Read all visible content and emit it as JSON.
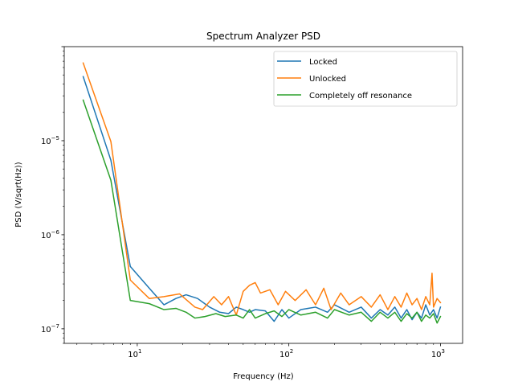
{
  "chart_data": {
    "type": "line",
    "title": "Spectrum Analyzer PSD",
    "xlabel": "Frequency (Hz)",
    "ylabel": "PSD (V/sqrt(Hz))",
    "x_scale": "log",
    "y_scale": "log",
    "xlim": [
      3.3,
      1400
    ],
    "ylim": [
      7e-08,
      0.0001
    ],
    "x_tick_labels": [
      {
        "value": 10,
        "base": "10",
        "exp": "1"
      },
      {
        "value": 100,
        "base": "10",
        "exp": "2"
      },
      {
        "value": 1000,
        "base": "10",
        "exp": "3"
      }
    ],
    "y_tick_labels": [
      {
        "value": 1e-07,
        "base": "10",
        "exp": "−7"
      },
      {
        "value": 1e-06,
        "base": "10",
        "exp": "−6"
      },
      {
        "value": 1e-05,
        "base": "10",
        "exp": "−5"
      }
    ],
    "grid": false,
    "legend_position": "top-right",
    "series": [
      {
        "name": "Locked",
        "color": "#1f77b4",
        "points": [
          [
            4.4,
            4.8e-05
          ],
          [
            6.7,
            6.2e-06
          ],
          [
            9.0,
            4.6e-07
          ],
          [
            12.0,
            2.7e-07
          ],
          [
            15.0,
            1.8e-07
          ],
          [
            18.0,
            2.1e-07
          ],
          [
            21.0,
            2.3e-07
          ],
          [
            25.0,
            2.1e-07
          ],
          [
            30.0,
            1.7e-07
          ],
          [
            35.0,
            1.5e-07
          ],
          [
            40.0,
            1.45e-07
          ],
          [
            45.0,
            1.7e-07
          ],
          [
            50.0,
            1.6e-07
          ],
          [
            55.0,
            1.5e-07
          ],
          [
            60.0,
            1.6e-07
          ],
          [
            70.0,
            1.55e-07
          ],
          [
            80.0,
            1.2e-07
          ],
          [
            90.0,
            1.6e-07
          ],
          [
            100,
            1.3e-07
          ],
          [
            120,
            1.6e-07
          ],
          [
            150,
            1.7e-07
          ],
          [
            180,
            1.5e-07
          ],
          [
            200,
            1.8e-07
          ],
          [
            250,
            1.5e-07
          ],
          [
            300,
            1.7e-07
          ],
          [
            350,
            1.3e-07
          ],
          [
            400,
            1.6e-07
          ],
          [
            450,
            1.4e-07
          ],
          [
            500,
            1.7e-07
          ],
          [
            550,
            1.3e-07
          ],
          [
            600,
            1.6e-07
          ],
          [
            650,
            1.25e-07
          ],
          [
            700,
            1.5e-07
          ],
          [
            750,
            1.3e-07
          ],
          [
            800,
            1.8e-07
          ],
          [
            850,
            1.4e-07
          ],
          [
            900,
            1.6e-07
          ],
          [
            950,
            1.3e-07
          ],
          [
            1000,
            1.7e-07
          ]
        ]
      },
      {
        "name": "Unlocked",
        "color": "#ff7f0e",
        "points": [
          [
            4.4,
            6.7e-05
          ],
          [
            6.7,
            9.8e-06
          ],
          [
            9.0,
            3.3e-07
          ],
          [
            12.0,
            2.1e-07
          ],
          [
            15.0,
            2.2e-07
          ],
          [
            19.0,
            2.35e-07
          ],
          [
            24.0,
            1.7e-07
          ],
          [
            27.0,
            1.6e-07
          ],
          [
            32.0,
            2.2e-07
          ],
          [
            36.0,
            1.8e-07
          ],
          [
            40.0,
            2.2e-07
          ],
          [
            45.0,
            1.4e-07
          ],
          [
            50.0,
            2.5e-07
          ],
          [
            55.0,
            2.9e-07
          ],
          [
            60.0,
            3.1e-07
          ],
          [
            65.0,
            2.4e-07
          ],
          [
            75.0,
            2.6e-07
          ],
          [
            85.0,
            1.8e-07
          ],
          [
            95.0,
            2.5e-07
          ],
          [
            110,
            2e-07
          ],
          [
            130,
            2.6e-07
          ],
          [
            150,
            1.8e-07
          ],
          [
            170,
            2.7e-07
          ],
          [
            190,
            1.6e-07
          ],
          [
            220,
            2.4e-07
          ],
          [
            250,
            1.8e-07
          ],
          [
            300,
            2.2e-07
          ],
          [
            350,
            1.7e-07
          ],
          [
            400,
            2.3e-07
          ],
          [
            450,
            1.6e-07
          ],
          [
            500,
            2.2e-07
          ],
          [
            550,
            1.7e-07
          ],
          [
            600,
            2.4e-07
          ],
          [
            650,
            1.8e-07
          ],
          [
            700,
            2.1e-07
          ],
          [
            750,
            1.6e-07
          ],
          [
            800,
            2.2e-07
          ],
          [
            850,
            1.8e-07
          ],
          [
            880,
            3.9e-07
          ],
          [
            900,
            1.7e-07
          ],
          [
            950,
            2.1e-07
          ],
          [
            1000,
            1.9e-07
          ]
        ]
      },
      {
        "name": "Completely off resonance",
        "color": "#2ca02c",
        "points": [
          [
            4.4,
            2.7e-05
          ],
          [
            6.7,
            3.8e-06
          ],
          [
            9.0,
            2e-07
          ],
          [
            12.0,
            1.85e-07
          ],
          [
            15.0,
            1.6e-07
          ],
          [
            18.0,
            1.65e-07
          ],
          [
            21.0,
            1.5e-07
          ],
          [
            24.0,
            1.3e-07
          ],
          [
            28.0,
            1.35e-07
          ],
          [
            33.0,
            1.45e-07
          ],
          [
            38.0,
            1.35e-07
          ],
          [
            45.0,
            1.4e-07
          ],
          [
            50.0,
            1.3e-07
          ],
          [
            55.0,
            1.6e-07
          ],
          [
            60.0,
            1.3e-07
          ],
          [
            70.0,
            1.45e-07
          ],
          [
            80.0,
            1.55e-07
          ],
          [
            90.0,
            1.35e-07
          ],
          [
            100,
            1.6e-07
          ],
          [
            120,
            1.4e-07
          ],
          [
            150,
            1.5e-07
          ],
          [
            180,
            1.3e-07
          ],
          [
            200,
            1.6e-07
          ],
          [
            250,
            1.4e-07
          ],
          [
            300,
            1.5e-07
          ],
          [
            350,
            1.2e-07
          ],
          [
            400,
            1.5e-07
          ],
          [
            450,
            1.3e-07
          ],
          [
            500,
            1.5e-07
          ],
          [
            550,
            1.2e-07
          ],
          [
            600,
            1.45e-07
          ],
          [
            650,
            1.3e-07
          ],
          [
            700,
            1.5e-07
          ],
          [
            750,
            1.2e-07
          ],
          [
            800,
            1.4e-07
          ],
          [
            850,
            1.3e-07
          ],
          [
            900,
            1.45e-07
          ],
          [
            950,
            1.15e-07
          ],
          [
            1000,
            1.35e-07
          ]
        ]
      }
    ]
  }
}
